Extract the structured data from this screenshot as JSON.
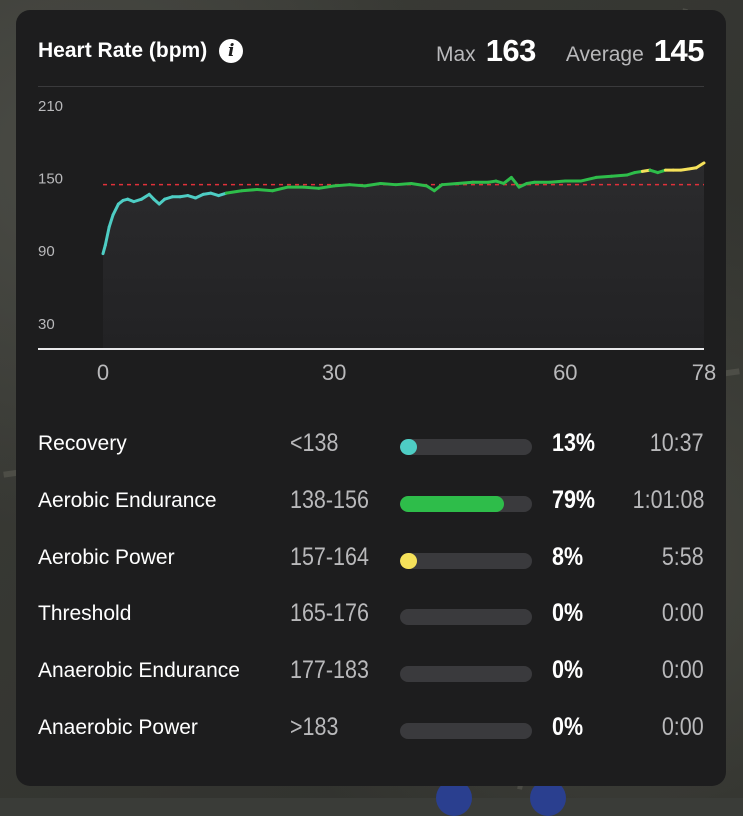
{
  "header": {
    "title": "Heart Rate (bpm)",
    "info_icon": "info-icon",
    "max_label": "Max",
    "max_value": "163",
    "average_label": "Average",
    "average_value": "145"
  },
  "chart_data": {
    "type": "line",
    "title": "",
    "xlabel": "",
    "ylabel": "",
    "x_ticks": [
      "0",
      "30",
      "60",
      "78"
    ],
    "y_ticks": [
      "210",
      "150",
      "90",
      "30"
    ],
    "xlim": [
      0,
      78
    ],
    "ylim": [
      10,
      215
    ],
    "average_line": 145,
    "colors": {
      "recovery": "#4ecdc4",
      "aerobic_endurance": "#2ebd4a",
      "aerobic_power": "#f5e15a",
      "average_line": "#e0313a"
    },
    "series": [
      {
        "values": [
          [
            0,
            88
          ],
          [
            0.3,
            95
          ],
          [
            0.8,
            110
          ],
          [
            1.3,
            120
          ],
          [
            2,
            129
          ],
          [
            2.6,
            132
          ],
          [
            3.2,
            133
          ],
          [
            4,
            131
          ],
          [
            5,
            133
          ],
          [
            6,
            137
          ],
          [
            6.6,
            133
          ],
          [
            7.3,
            129
          ],
          [
            8,
            133
          ],
          [
            9,
            135
          ],
          [
            10,
            135
          ],
          [
            11,
            136
          ],
          [
            12,
            134
          ],
          [
            13,
            137
          ],
          [
            14,
            138
          ],
          [
            15,
            136
          ],
          [
            16,
            138
          ],
          [
            18,
            140
          ],
          [
            20,
            141
          ],
          [
            22,
            140
          ],
          [
            24,
            143
          ],
          [
            26,
            143
          ],
          [
            28,
            142
          ],
          [
            30,
            144
          ],
          [
            32,
            145
          ],
          [
            34,
            144
          ],
          [
            36,
            146
          ],
          [
            38,
            145
          ],
          [
            40,
            146
          ],
          [
            42,
            144
          ],
          [
            43,
            140
          ],
          [
            44,
            145
          ],
          [
            46,
            146
          ],
          [
            48,
            147
          ],
          [
            50,
            147
          ],
          [
            51,
            148
          ],
          [
            52,
            146
          ],
          [
            53,
            151
          ],
          [
            54,
            143
          ],
          [
            55,
            146
          ],
          [
            56,
            147
          ],
          [
            58,
            147
          ],
          [
            60,
            148
          ],
          [
            62,
            148
          ],
          [
            64,
            151
          ],
          [
            66,
            152
          ],
          [
            68,
            153
          ],
          [
            69,
            155
          ],
          [
            70,
            156
          ],
          [
            71,
            157
          ],
          [
            72,
            155
          ],
          [
            73,
            157
          ],
          [
            74,
            157
          ],
          [
            75,
            157
          ],
          [
            76,
            158
          ],
          [
            77,
            159
          ],
          [
            78,
            163
          ]
        ]
      }
    ]
  },
  "zones": [
    {
      "name": "Recovery",
      "range": "<138",
      "percent_value": 13,
      "percent": "13%",
      "time": "10:37",
      "color": "#4ecdc4"
    },
    {
      "name": "Aerobic Endurance",
      "range": "138-156",
      "percent_value": 79,
      "percent": "79%",
      "time": "1:01:08",
      "color": "#2ebd4a"
    },
    {
      "name": "Aerobic Power",
      "range": "157-164",
      "percent_value": 8,
      "percent": "8%",
      "time": "5:58",
      "color": "#f5e15a"
    },
    {
      "name": "Threshold",
      "range": "165-176",
      "percent_value": 0,
      "percent": "0%",
      "time": "0:00",
      "color": "#e8963a"
    },
    {
      "name": "Anaerobic Endurance",
      "range": "177-183",
      "percent_value": 0,
      "percent": "0%",
      "time": "0:00",
      "color": "#e0313a"
    },
    {
      "name": "Anaerobic Power",
      "range": ">183",
      "percent_value": 0,
      "percent": "0%",
      "time": "0:00",
      "color": "#b03ad6"
    }
  ]
}
